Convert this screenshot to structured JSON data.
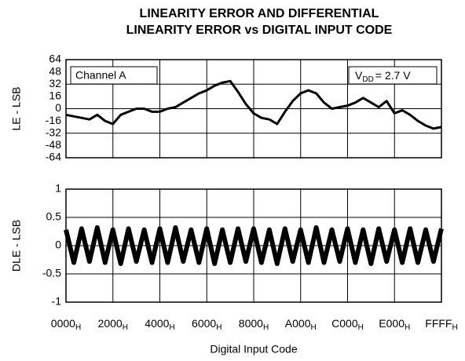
{
  "chart_data": [
    {
      "type": "line",
      "title": [
        "LINEARITY ERROR AND DIFFERENTIAL",
        "LINEARITY ERROR vs DIGITAL INPUT CODE"
      ],
      "ylabel": "LE - LSB",
      "ylim": [
        -64,
        64
      ],
      "yticks": [
        64,
        48,
        32,
        16,
        0,
        -16,
        -32,
        -48,
        -64
      ],
      "grid_y": [
        32,
        0,
        -32
      ],
      "xlim": [
        0,
        65535
      ],
      "annotations": [
        {
          "text": "Channel A"
        },
        {
          "text": "V",
          "subscript": "DD",
          "rest": "= 2.7 V"
        }
      ],
      "series": [
        {
          "name": "LE",
          "color": "#000000",
          "x": [
            0,
            1365,
            2730,
            4095,
            5460,
            6825,
            8190,
            9555,
            10920,
            12285,
            13650,
            15015,
            16380,
            17745,
            19110,
            20475,
            21840,
            23205,
            24570,
            25935,
            27300,
            28665,
            30030,
            31395,
            32760,
            34125,
            35490,
            36855,
            38220,
            39585,
            40950,
            42315,
            43680,
            45045,
            46410,
            47775,
            49140,
            50505,
            51870,
            53235,
            54600,
            55965,
            57330,
            58695,
            60060,
            61425,
            62790,
            64155,
            65520
          ],
          "values": [
            -8,
            -10,
            -12,
            -14,
            -8,
            -16,
            -20,
            -8,
            -4,
            0,
            0,
            -4,
            -4,
            0,
            2,
            8,
            14,
            20,
            24,
            30,
            34,
            36,
            22,
            6,
            -6,
            -12,
            -14,
            -20,
            -4,
            10,
            20,
            24,
            20,
            8,
            0,
            2,
            4,
            8,
            14,
            8,
            2,
            10,
            -6,
            -2,
            -8,
            -16,
            -22,
            -26,
            -24
          ]
        }
      ]
    },
    {
      "type": "line",
      "ylabel": "DLE - LSB",
      "xlabel": "Digital Input Code",
      "ylim": [
        -1,
        1
      ],
      "yticks": [
        1,
        0.5,
        0,
        -0.5,
        -1
      ],
      "grid_y": [
        0.5,
        0,
        -0.5
      ],
      "xlim": [
        0,
        65535
      ],
      "xticks": [
        {
          "value": 0,
          "label": "0000",
          "subscript": "H"
        },
        {
          "value": 8192,
          "label": "2000",
          "subscript": "H"
        },
        {
          "value": 16384,
          "label": "4000",
          "subscript": "H"
        },
        {
          "value": 24576,
          "label": "6000",
          "subscript": "H"
        },
        {
          "value": 32768,
          "label": "8000",
          "subscript": "H"
        },
        {
          "value": 40960,
          "label": "A000",
          "subscript": "H"
        },
        {
          "value": 49152,
          "label": "C000",
          "subscript": "H"
        },
        {
          "value": 57344,
          "label": "E000",
          "subscript": "H"
        },
        {
          "value": 65535,
          "label": "FFFF",
          "subscript": "H"
        }
      ],
      "series": [
        {
          "name": "DLE",
          "color": "#000000",
          "x": [
            0,
            1365,
            2730,
            4095,
            5460,
            6825,
            8190,
            9555,
            10920,
            12285,
            13650,
            15015,
            16380,
            17745,
            19110,
            20475,
            21840,
            23205,
            24570,
            25935,
            27300,
            28665,
            30030,
            31395,
            32760,
            34125,
            35490,
            36855,
            38220,
            39585,
            40950,
            42315,
            43680,
            45045,
            46410,
            47775,
            49140,
            50505,
            51870,
            53235,
            54600,
            55965,
            57330,
            58695,
            60060,
            61425,
            62790,
            64155,
            65520
          ],
          "values": [
            0.28,
            -0.3,
            0.3,
            -0.28,
            0.32,
            -0.3,
            0.28,
            -0.32,
            0.3,
            -0.28,
            0.28,
            -0.3,
            0.3,
            -0.3,
            0.32,
            -0.28,
            0.28,
            -0.3,
            0.3,
            -0.32,
            0.28,
            -0.3,
            0.3,
            -0.28,
            0.3,
            -0.3,
            0.28,
            -0.32,
            0.3,
            -0.28,
            0.28,
            -0.3,
            0.32,
            -0.3,
            0.28,
            -0.28,
            0.3,
            -0.3,
            0.28,
            -0.32,
            0.3,
            -0.28,
            0.28,
            -0.3,
            0.3,
            -0.3,
            0.28,
            -0.28,
            0.3
          ]
        }
      ]
    }
  ]
}
